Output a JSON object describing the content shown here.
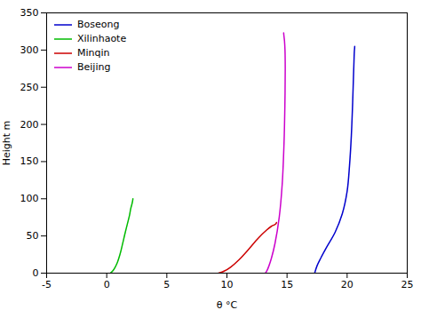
{
  "chart_data": {
    "type": "line",
    "xlabel": "θ °C",
    "ylabel": "Height m",
    "xlim": [
      -5,
      25
    ],
    "ylim": [
      0,
      350
    ],
    "xticks": [
      -5,
      0,
      5,
      10,
      15,
      20,
      25
    ],
    "yticks": [
      0,
      50,
      100,
      150,
      200,
      250,
      300,
      350
    ],
    "grid": false,
    "legend": "upper left",
    "series": [
      {
        "name": "Boseong",
        "color": "#0000cd",
        "x": [
          17.3,
          17.5,
          17.8,
          18.3,
          19.0,
          19.6,
          20.0,
          20.2,
          20.35,
          20.45,
          20.52,
          20.57,
          20.6,
          20.62,
          20.63
        ],
        "values": [
          0,
          10,
          20,
          35,
          55,
          80,
          110,
          145,
          185,
          225,
          260,
          285,
          298,
          302,
          305
        ]
      },
      {
        "name": "Xilinhaote",
        "color": "#00bb00",
        "x": [
          0.3,
          0.5,
          0.7,
          0.9,
          1.1,
          1.3,
          1.5,
          1.7,
          1.9,
          2.0,
          2.1,
          2.15,
          2.18
        ],
        "values": [
          0,
          3,
          8,
          15,
          25,
          38,
          52,
          65,
          78,
          87,
          93,
          97,
          100
        ]
      },
      {
        "name": "Minqin",
        "color": "#cc0000",
        "x": [
          9.3,
          9.8,
          10.3,
          11.0,
          11.8,
          12.6,
          13.3,
          13.7,
          13.95,
          14.05,
          14.1,
          14.12
        ],
        "values": [
          0,
          3,
          8,
          18,
          32,
          47,
          58,
          63,
          65,
          66,
          67,
          68
        ]
      },
      {
        "name": "Beijing",
        "color": "#cc00cc",
        "x": [
          13.2,
          13.35,
          13.5,
          13.7,
          14.0,
          14.35,
          14.6,
          14.75,
          14.82,
          14.85,
          14.83,
          14.79,
          14.75,
          14.73,
          14.72
        ],
        "values": [
          0,
          4,
          10,
          20,
          40,
          75,
          120,
          175,
          225,
          275,
          300,
          312,
          318,
          321,
          323
        ]
      }
    ]
  }
}
